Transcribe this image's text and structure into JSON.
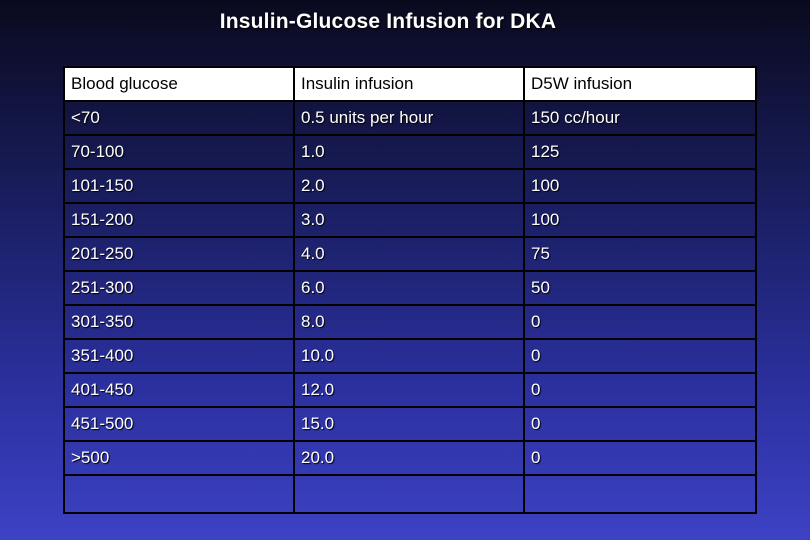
{
  "slide": {
    "title": "Insulin-Glucose Infusion for DKA"
  },
  "table": {
    "headers": [
      "Blood glucose",
      "Insulin infusion",
      "D5W infusion"
    ],
    "rows": [
      [
        "<70",
        "0.5 units per hour",
        "150 cc/hour"
      ],
      [
        "70-100",
        "1.0",
        "125"
      ],
      [
        "101-150",
        "2.0",
        "100"
      ],
      [
        "151-200",
        "3.0",
        "100"
      ],
      [
        "201-250",
        "4.0",
        "75"
      ],
      [
        "251-300",
        "6.0",
        "50"
      ],
      [
        "301-350",
        "8.0",
        "0"
      ],
      [
        "351-400",
        "10.0",
        "0"
      ],
      [
        "401-450",
        "12.0",
        "0"
      ],
      [
        "451-500",
        "15.0",
        "0"
      ],
      [
        ">500",
        "20.0",
        "0"
      ],
      [
        "",
        "",
        ""
      ]
    ]
  },
  "colors": {
    "header_background": "#ffffff",
    "header_text": "#000000",
    "body_text": "#ffffff",
    "grid_line": "#000000",
    "background_top": "#0a0a1e",
    "background_bottom": "#3c42c4"
  }
}
